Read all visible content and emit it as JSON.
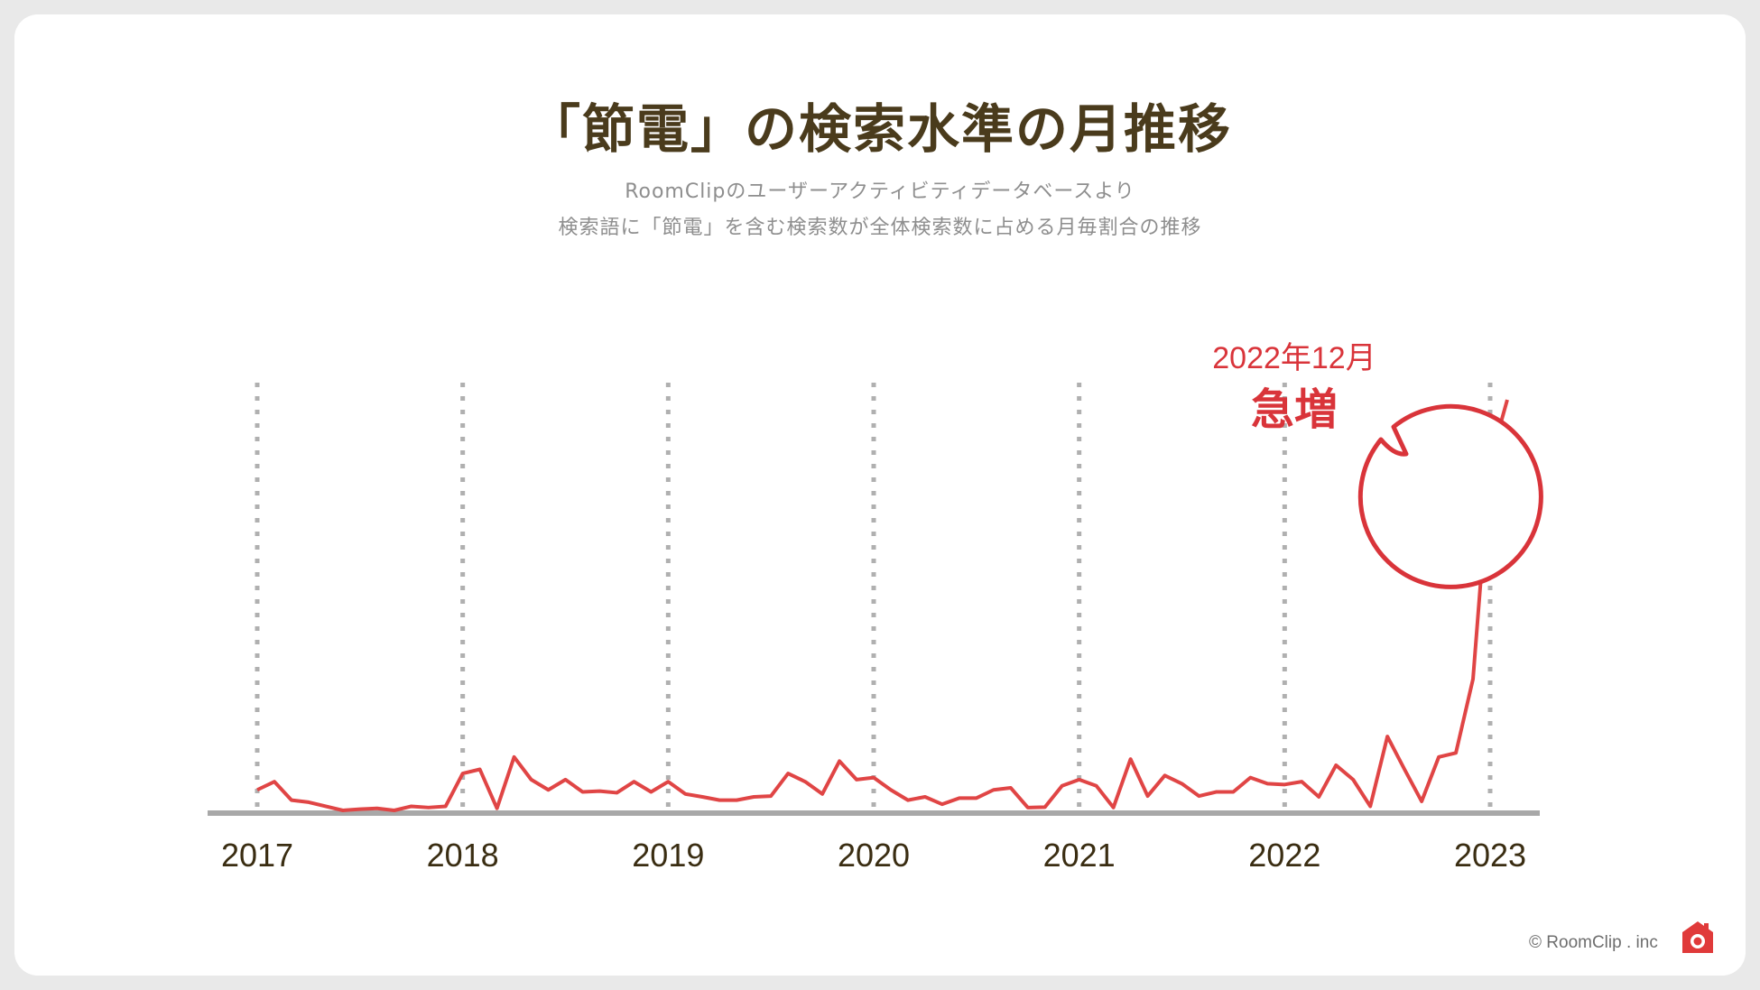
{
  "title": "「節電」の検索水準の月推移",
  "subtitle_line1": "RoomClipのユーザーアクティビティデータベースより",
  "subtitle_line2": "検索語に「節電」を含む検索数が全体検索数に占める月毎割合の推移",
  "copyright": "© RoomClip . inc",
  "callout": {
    "line1": "2022年12月",
    "line2": "急増"
  },
  "colors": {
    "line": "#e04545",
    "title": "#4a3b1c",
    "callout": "#d9343a",
    "gridline": "#b0b0b0",
    "axis": "#a8a8a8"
  },
  "icons": {
    "logo": "roomclip-house-camera-icon"
  },
  "chart_data": {
    "type": "line",
    "x_axis": "year",
    "x_ticks": [
      "2017",
      "2018",
      "2019",
      "2020",
      "2021",
      "2022",
      "2023"
    ],
    "x_range": [
      2017.0,
      2023.0
    ],
    "grid": "vertical-dotted",
    "series": [
      {
        "values": [
          0.05,
          0.07,
          0.025,
          0.02,
          0.01,
          0.0,
          0.003,
          0.005,
          0.0,
          0.01,
          0.007,
          0.01,
          0.09,
          0.1,
          0.005,
          0.13,
          0.075,
          0.05,
          0.075,
          0.045,
          0.047,
          0.043,
          0.07,
          0.045,
          0.07,
          0.04,
          0.033,
          0.025,
          0.025,
          0.033,
          0.035,
          0.09,
          0.07,
          0.04,
          0.12,
          0.075,
          0.08,
          0.05,
          0.025,
          0.033,
          0.015,
          0.03,
          0.03,
          0.05,
          0.055,
          0.007,
          0.008,
          0.06,
          0.075,
          0.06,
          0.007,
          0.125,
          0.035,
          0.085,
          0.065,
          0.035,
          0.045,
          0.045,
          0.08,
          0.065,
          0.063,
          0.07,
          0.033,
          0.11,
          0.075,
          0.01,
          0.18,
          0.1,
          0.022,
          0.13,
          0.14,
          0.32,
          0.85,
          1.0
        ]
      }
    ]
  }
}
